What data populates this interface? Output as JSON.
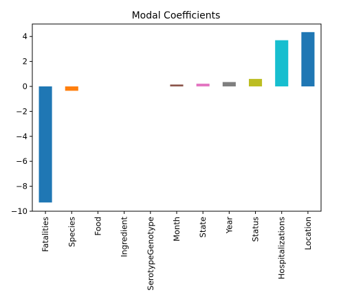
{
  "chart_data": {
    "type": "bar",
    "title": "Modal Coefficients",
    "xlabel": "",
    "ylabel": "",
    "categories": [
      "Fatalities",
      "Species",
      "Food",
      "Ingredient",
      "SerotypeGenotype",
      "Month",
      "State",
      "Year",
      "Status",
      "Hospitalizations",
      "Location"
    ],
    "values": [
      -9.3,
      -0.35,
      0.0,
      0.0,
      0.0,
      0.15,
      0.22,
      0.35,
      0.6,
      3.7,
      4.35
    ],
    "colors": [
      "#1f77b4",
      "#ff7f0e",
      "#2ca02c",
      "#d62728",
      "#9467bd",
      "#8c564b",
      "#e377c2",
      "#7f7f7f",
      "#bcbd22",
      "#17becf",
      "#1f77b4"
    ],
    "ylim": [
      -10,
      5
    ],
    "yticks": [
      -10,
      -8,
      -6,
      -4,
      -2,
      0,
      2,
      4
    ],
    "grid": false,
    "legend": "none"
  }
}
